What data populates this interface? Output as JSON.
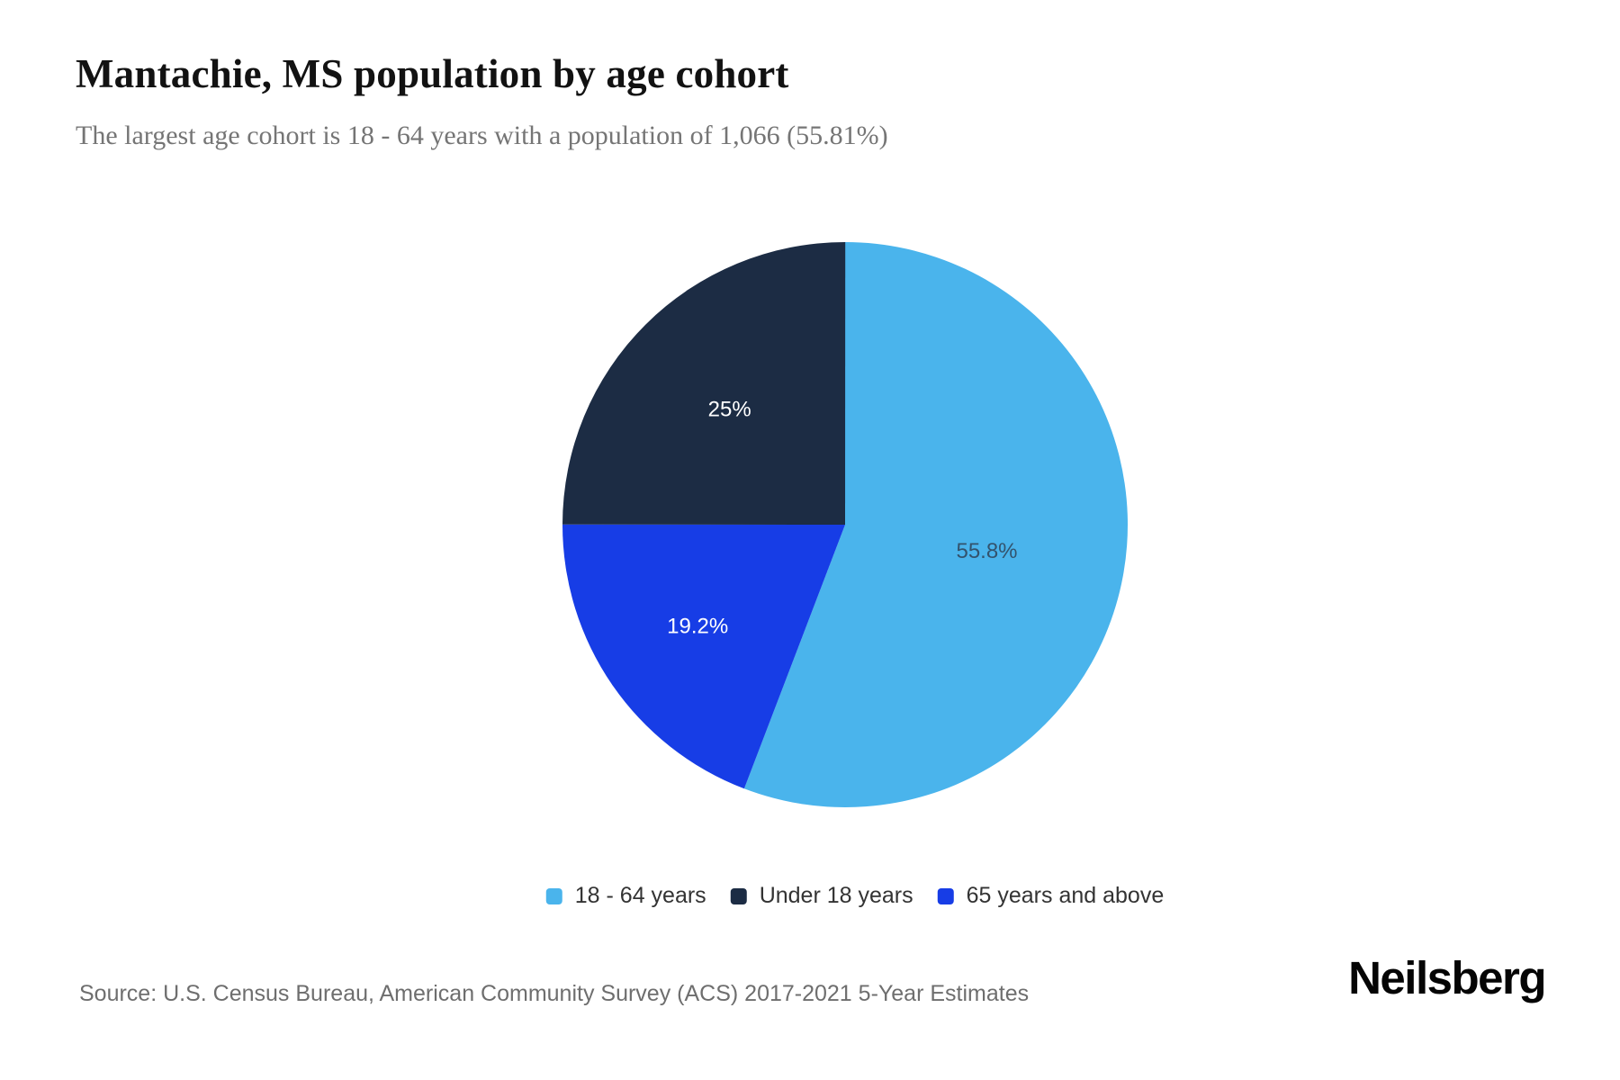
{
  "page": {
    "title": "Mantachie, MS population by age cohort",
    "subtitle": "The largest age cohort is 18 - 64 years with a population of 1,066 (55.81%)",
    "source": "Source: U.S. Census Bureau, American Community Survey (ACS) 2017-2021 5-Year Estimates",
    "brand": "Neilsberg"
  },
  "chart_data": {
    "type": "pie",
    "title": "Mantachie, MS population by age cohort",
    "subtitle": "The largest age cohort is 18 - 64 years with a population of 1,066 (55.81%)",
    "start_angle_deg": 0,
    "direction": "clockwise",
    "highlight": {
      "cohort": "18 - 64 years",
      "population": 1066,
      "pct_text": "55.81%"
    },
    "slices": [
      {
        "name": "18 - 64 years",
        "pct": 55.81,
        "label": "55.8%",
        "color": "#4ab4ec",
        "label_color": "#33536d",
        "label_r": 0.51
      },
      {
        "name": "65 years and above",
        "pct": 19.2,
        "label": "19.2%",
        "color": "#173de6",
        "label_color": "#ffffff",
        "label_r": 0.633
      },
      {
        "name": "Under 18 years",
        "pct": 25.0,
        "label": "25%",
        "color": "#1c2c44",
        "label_color": "#ffffff",
        "label_r": 0.578
      }
    ],
    "legend": {
      "position": "bottom",
      "items": [
        {
          "label": "18 - 64 years",
          "color": "#4ab4ec"
        },
        {
          "label": "Under 18 years",
          "color": "#1c2c44"
        },
        {
          "label": "65 years and above",
          "color": "#173de6"
        }
      ]
    }
  }
}
